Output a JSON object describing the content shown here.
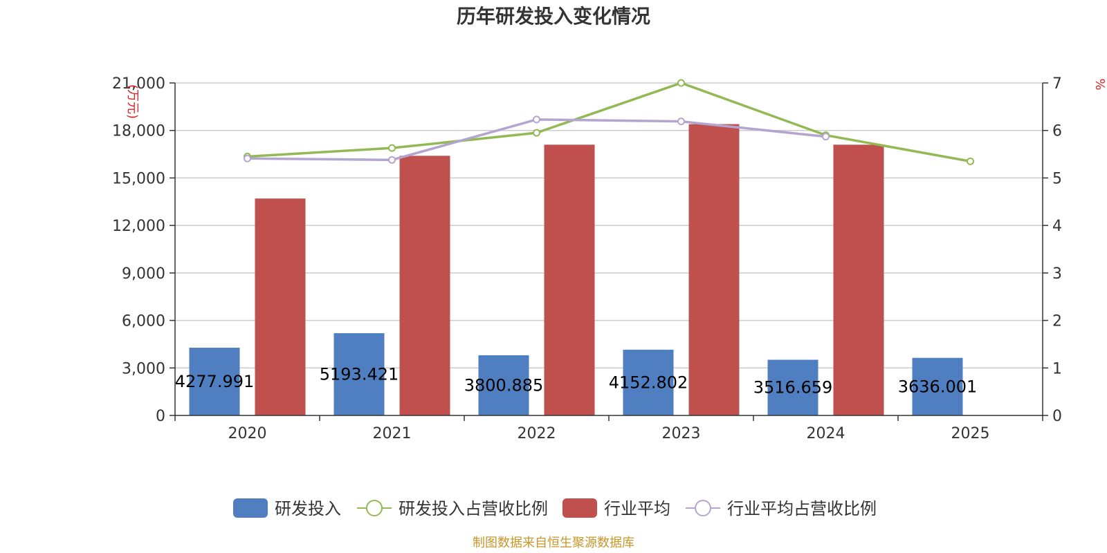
{
  "chart_data": {
    "type": "bar",
    "title": "历年研发投入变化情况",
    "categories": [
      "2020",
      "2021",
      "2022",
      "2023",
      "2024",
      "2025"
    ],
    "y_left": {
      "unit": "(万元)",
      "ylim": [
        0,
        21000
      ],
      "ticks": [
        "0",
        "3,000",
        "6,000",
        "9,000",
        "12,000",
        "15,000",
        "18,000",
        "21,000"
      ]
    },
    "y_right": {
      "unit": "%",
      "ylim": [
        0,
        7
      ],
      "ticks": [
        "0",
        "1",
        "2",
        "3",
        "4",
        "5",
        "6",
        "7"
      ]
    },
    "series": [
      {
        "name": "研发投入",
        "kind": "bar",
        "axis": "left",
        "color": "#4f7fc0",
        "values": [
          4277.991,
          5193.421,
          3800.885,
          4152.802,
          3516.659,
          3636.001
        ],
        "labels": [
          "4277.991",
          "5193.421",
          "3800.885",
          "4152.802",
          "3516.659",
          "3636.001"
        ]
      },
      {
        "name": "研发投入占营收比例",
        "kind": "line",
        "axis": "right",
        "color": "#93b955",
        "values": [
          5.45,
          5.63,
          5.95,
          7.0,
          5.9,
          5.35
        ]
      },
      {
        "name": "行业平均",
        "kind": "bar",
        "axis": "left",
        "color": "#c0504d",
        "values": [
          13700,
          16400,
          17100,
          18400,
          17100,
          null
        ]
      },
      {
        "name": "行业平均占营收比例",
        "kind": "line",
        "axis": "right",
        "color": "#b3a5d0",
        "values": [
          5.41,
          5.38,
          6.23,
          6.19,
          5.87,
          null
        ]
      }
    ],
    "grid": true,
    "legend": "bottom",
    "source": "制图数据来自恒生聚源数据库"
  }
}
